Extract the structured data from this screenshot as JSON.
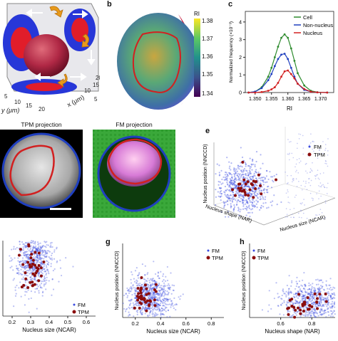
{
  "figure": {
    "panel_letters": {
      "b": "b",
      "c": "c",
      "e": "e",
      "g": "g",
      "h": "h"
    },
    "panel_a": {
      "y_axis_label": "y (μm)",
      "x_axis_label": "x (μm)",
      "y_ticks": [
        "5",
        "10",
        "15",
        "20"
      ],
      "x_ticks": [
        "5",
        "10",
        "15",
        "20"
      ]
    },
    "panel_b": {
      "colorbar_title": "RI",
      "colorbar_ticks": [
        "1.38",
        "1.37",
        "1.36",
        "1.35",
        "1.34"
      ],
      "colorbar_stops": [
        "#fde725",
        "#5ec962",
        "#21918c",
        "#3b528b",
        "#440154"
      ]
    },
    "panel_d": {
      "tpm_title": "TPM projection",
      "fm_title": "FM projection"
    },
    "colors": {
      "cell": "#2e8b2e",
      "non_nucleus": "#1f3fbf",
      "nucleus": "#d22020",
      "fm_points": "#3a4be0",
      "tpm_points": "#8b0d0d"
    }
  },
  "chart_data": [
    {
      "panel": "c",
      "type": "line",
      "xlabel": "RI",
      "ylabel": "Normalized frequency (×10⁻³)",
      "xlim": [
        1.347,
        1.374
      ],
      "ylim": [
        0,
        4.6
      ],
      "x_ticks": [
        "1.350",
        "1.355",
        "1.360",
        "1.365",
        "1.370"
      ],
      "y_ticks": [
        "0",
        "1",
        "2",
        "3",
        "4"
      ],
      "legend_position": "top-right",
      "x": [
        1.348,
        1.35,
        1.352,
        1.354,
        1.355,
        1.356,
        1.357,
        1.358,
        1.359,
        1.36,
        1.361,
        1.362,
        1.363,
        1.365,
        1.367,
        1.369,
        1.372
      ],
      "series": [
        {
          "name": "Cell",
          "values": [
            0,
            0.05,
            0.3,
            0.9,
            1.4,
            2.0,
            2.6,
            3.1,
            3.3,
            3.1,
            2.5,
            1.8,
            1.1,
            0.4,
            0.1,
            0.02,
            0
          ]
        },
        {
          "name": "Non-nucleus",
          "values": [
            0,
            0.05,
            0.25,
            0.7,
            1.05,
            1.5,
            1.9,
            2.15,
            2.2,
            1.9,
            1.4,
            0.9,
            0.5,
            0.15,
            0.05,
            0.01,
            0
          ]
        },
        {
          "name": "Nucleus",
          "values": [
            0,
            0,
            0.03,
            0.1,
            0.18,
            0.3,
            0.55,
            0.9,
            1.2,
            1.25,
            1.05,
            0.8,
            0.5,
            0.2,
            0.05,
            0.01,
            0
          ]
        }
      ]
    },
    {
      "panel": "e",
      "type": "scatter",
      "xlabel": "Nucleus size (NCAR)",
      "ylabel": "Nucleus position (NNCCD)",
      "zlabel": "Nucleus shape (NAR)",
      "legend_position": "top-right",
      "series": [
        {
          "name": "FM"
        },
        {
          "name": "TPM"
        }
      ]
    },
    {
      "panel": "f",
      "type": "scatter",
      "xlabel": "Nucleus size (NCAR)",
      "x_ticks": [
        "0.2",
        "0.3",
        "0.4",
        "0.5",
        "0.6"
      ],
      "xlim": [
        0.15,
        0.65
      ],
      "legend_position": "bottom-right",
      "series": [
        {
          "name": "FM"
        },
        {
          "name": "TPM"
        }
      ]
    },
    {
      "panel": "g",
      "type": "scatter",
      "xlabel": "Nucleus size (NCAR)",
      "ylabel": "Nucleus position (NNCCD)",
      "x_ticks": [
        "0.2",
        "0.4",
        "0.6",
        "0.8"
      ],
      "xlim": [
        0.1,
        0.9
      ],
      "legend_position": "top-right",
      "series": [
        {
          "name": "FM"
        },
        {
          "name": "TPM"
        }
      ]
    },
    {
      "panel": "h",
      "type": "scatter",
      "xlabel": "Nucleus shape (NAR)",
      "ylabel": "Nucleus position (NNCCD)",
      "x_ticks": [
        "0.6",
        "0.8"
      ],
      "xlim": [
        0.4,
        0.95
      ],
      "legend_position": "top-left",
      "series": [
        {
          "name": "FM"
        },
        {
          "name": "TPM"
        }
      ]
    }
  ]
}
